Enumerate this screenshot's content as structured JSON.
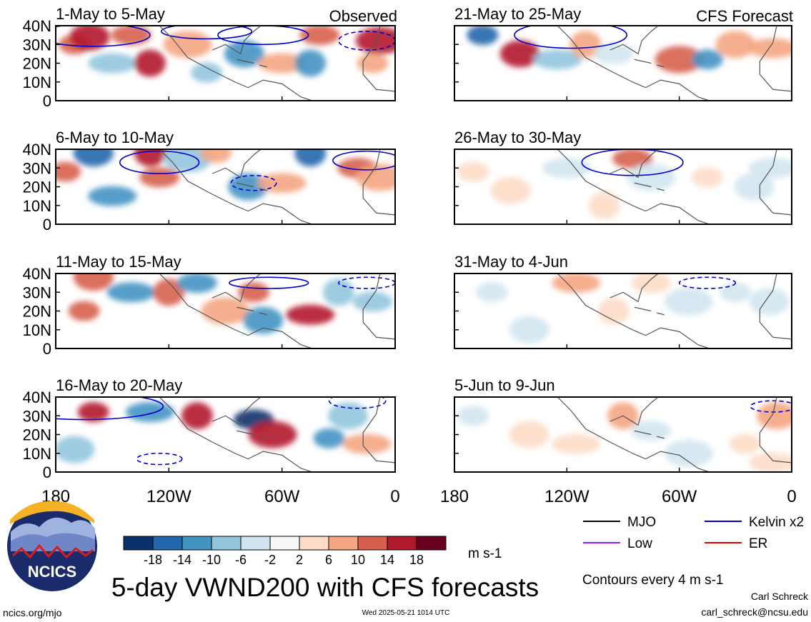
{
  "header": {
    "left_label": "Observed",
    "right_label": "CFS Forecast"
  },
  "panels": [
    {
      "title": "1-May to 5-May",
      "col": 0,
      "row": 0
    },
    {
      "title": "6-May to 10-May",
      "col": 0,
      "row": 1
    },
    {
      "title": "11-May to 15-May",
      "col": 0,
      "row": 2
    },
    {
      "title": "16-May to 20-May",
      "col": 0,
      "row": 3
    },
    {
      "title": "21-May to 25-May",
      "col": 1,
      "row": 0
    },
    {
      "title": "26-May to 30-May",
      "col": 1,
      "row": 1
    },
    {
      "title": "31-May to 4-Jun",
      "col": 1,
      "row": 2
    },
    {
      "title": "5-Jun to 9-Jun",
      "col": 1,
      "row": 3
    }
  ],
  "y_ticks": [
    "40N",
    "30N",
    "20N",
    "10N",
    "0"
  ],
  "x_ticks": [
    "180",
    "120W",
    "60W",
    "0"
  ],
  "colorbar": {
    "labels": [
      "-18",
      "-14",
      "-10",
      "-6",
      "-2",
      "2",
      "6",
      "10",
      "14",
      "18"
    ],
    "unit": "m s-1",
    "colors": [
      "#08306b",
      "#2166ac",
      "#4393c3",
      "#92c5de",
      "#d1e5f0",
      "#f7f7f7",
      "#fddbc7",
      "#f4a582",
      "#d6604d",
      "#b2182b",
      "#67001f"
    ]
  },
  "legend": [
    {
      "label": "MJO",
      "color": "#000000"
    },
    {
      "label": "Kelvin x2",
      "color": "#0000cc"
    },
    {
      "label": "Low",
      "color": "#a020f0"
    },
    {
      "label": "ER",
      "color": "#dd0000"
    }
  ],
  "contour_note": "Contours every 4 m s-1",
  "main_title": "5-day VWND200 with CFS forecasts",
  "logo_text": "NCICS",
  "footer": {
    "url": "ncics.org/mjo",
    "timestamp": "Wed 2025-05-21 1014 UTC",
    "author": "Carl Schreck",
    "email": "carl_schreck@ncsu.edu"
  },
  "chart_data": {
    "type": "heatmap",
    "variable": "VWND200",
    "x_range": [
      -180,
      0
    ],
    "y_range": [
      0,
      40
    ],
    "blobs": [
      [
        [
          -170,
          30,
          "#d6604d"
        ],
        [
          -162,
          34,
          "#b2182b"
        ],
        [
          -150,
          20,
          "#92c5de"
        ],
        [
          -130,
          20,
          "#b2182b"
        ],
        [
          -140,
          35,
          "#d6604d"
        ],
        [
          -110,
          30,
          "#f4a582"
        ],
        [
          -100,
          15,
          "#92c5de"
        ],
        [
          -80,
          25,
          "#4393c3"
        ],
        [
          -60,
          20,
          "#f4a582"
        ],
        [
          -45,
          20,
          "#4393c3"
        ],
        [
          -40,
          35,
          "#d6604d"
        ],
        [
          -8,
          32,
          "#b2182b"
        ],
        [
          -12,
          20,
          "#f4a582"
        ]
      ],
      [
        [
          -175,
          28,
          "#d6604d"
        ],
        [
          -160,
          38,
          "#2166ac"
        ],
        [
          -150,
          15,
          "#4393c3"
        ],
        [
          -130,
          38,
          "#b2182b"
        ],
        [
          -125,
          25,
          "#d6604d"
        ],
        [
          -110,
          35,
          "#92c5de"
        ],
        [
          -95,
          38,
          "#f4a582"
        ],
        [
          -78,
          20,
          "#4393c3"
        ],
        [
          -60,
          22,
          "#f4a582"
        ],
        [
          -45,
          38,
          "#2166ac"
        ],
        [
          -20,
          30,
          "#d6604d"
        ],
        [
          -8,
          25,
          "#f4a582"
        ]
      ],
      [
        [
          -165,
          20,
          "#d6604d"
        ],
        [
          -160,
          38,
          "#d6604d"
        ],
        [
          -140,
          30,
          "#4393c3"
        ],
        [
          -120,
          30,
          "#d6604d"
        ],
        [
          -105,
          35,
          "#4393c3"
        ],
        [
          -90,
          20,
          "#f4a582"
        ],
        [
          -75,
          30,
          "#d6604d"
        ],
        [
          -70,
          15,
          "#4393c3"
        ],
        [
          -45,
          18,
          "#b2182b"
        ],
        [
          -30,
          30,
          "#92c5de"
        ],
        [
          -12,
          25,
          "#92c5de"
        ]
      ],
      [
        [
          -160,
          32,
          "#b2182b"
        ],
        [
          -170,
          12,
          "#92c5de"
        ],
        [
          -130,
          32,
          "#4393c3"
        ],
        [
          -105,
          30,
          "#b2182b"
        ],
        [
          -75,
          28,
          "#08306b"
        ],
        [
          -65,
          20,
          "#b2182b"
        ],
        [
          -35,
          18,
          "#4393c3"
        ],
        [
          -25,
          30,
          "#92c5de"
        ],
        [
          -15,
          15,
          "#f4a582"
        ]
      ],
      [
        [
          -165,
          35,
          "#2166ac"
        ],
        [
          -145,
          25,
          "#b2182b"
        ],
        [
          -125,
          22,
          "#92c5de"
        ],
        [
          -110,
          30,
          "#f4a582"
        ],
        [
          -95,
          25,
          "#d1e5f0"
        ],
        [
          -60,
          22,
          "#d6604d"
        ],
        [
          -45,
          22,
          "#4393c3"
        ],
        [
          -30,
          30,
          "#f4a582"
        ],
        [
          -10,
          28,
          "#f4a582"
        ]
      ],
      [
        [
          -170,
          28,
          "#fddbc7"
        ],
        [
          -150,
          18,
          "#fddbc7"
        ],
        [
          -120,
          30,
          "#d1e5f0"
        ],
        [
          -100,
          10,
          "#fddbc7"
        ],
        [
          -85,
          35,
          "#d6604d"
        ],
        [
          -75,
          25,
          "#d1e5f0"
        ],
        [
          -45,
          25,
          "#fddbc7"
        ],
        [
          -20,
          20,
          "#d1e5f0"
        ],
        [
          -10,
          30,
          "#d1e5f0"
        ]
      ],
      [
        [
          -160,
          30,
          "#d1e5f0"
        ],
        [
          -140,
          10,
          "#d1e5f0"
        ],
        [
          -115,
          35,
          "#f4a582"
        ],
        [
          -95,
          20,
          "#fddbc7"
        ],
        [
          -75,
          35,
          "#fddbc7"
        ],
        [
          -55,
          25,
          "#d1e5f0"
        ],
        [
          -30,
          30,
          "#d1e5f0"
        ],
        [
          -12,
          25,
          "#d1e5f0"
        ]
      ],
      [
        [
          -170,
          30,
          "#d1e5f0"
        ],
        [
          -140,
          20,
          "#fddbc7"
        ],
        [
          -115,
          15,
          "#fddbc7"
        ],
        [
          -90,
          30,
          "#f4a582"
        ],
        [
          -75,
          22,
          "#d1e5f0"
        ],
        [
          -55,
          10,
          "#d1e5f0"
        ],
        [
          -25,
          15,
          "#fddbc7"
        ],
        [
          -8,
          30,
          "#f4a582"
        ],
        [
          -10,
          5,
          "#fddbc7"
        ]
      ]
    ],
    "kelvin_contours": [
      [
        [
          -160,
          35,
          10,
          6
        ],
        [
          -100,
          37,
          8,
          4
        ],
        [
          -70,
          35,
          8,
          5
        ],
        [
          -15,
          32,
          5,
          5
        ]
      ],
      [
        [
          -125,
          33,
          7,
          6
        ],
        [
          -75,
          22,
          4,
          4
        ],
        [
          -15,
          34,
          6,
          5
        ]
      ],
      [
        [
          -67,
          35,
          7,
          3
        ],
        [
          -15,
          35,
          5,
          3
        ]
      ],
      [
        [
          -165,
          35,
          14,
          7
        ],
        [
          -125,
          7,
          4,
          3
        ],
        [
          -20,
          38,
          5,
          4
        ]
      ],
      [
        [
          -118,
          35,
          10,
          7
        ]
      ],
      [
        [
          -85,
          33,
          9,
          7
        ]
      ],
      [
        [
          -45,
          35,
          5,
          3
        ]
      ],
      [
        [
          -10,
          35,
          4,
          3
        ]
      ]
    ]
  }
}
